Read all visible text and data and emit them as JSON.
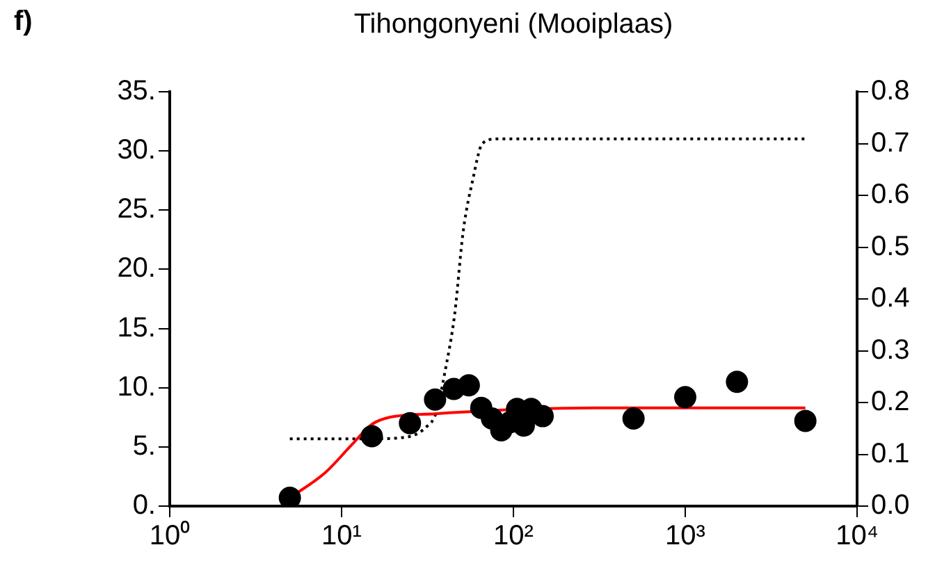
{
  "chart_data": {
    "type": "scatter",
    "title": "Tihongonyeni (Mooiplaas)",
    "annotations": [
      "f)"
    ],
    "log": "x",
    "grid": false,
    "legend": false,
    "marker": "circle",
    "xlim": [
      1,
      10000
    ],
    "xticks": [
      {
        "value": 1,
        "label": "10⁰"
      },
      {
        "value": 10,
        "label": "10¹"
      },
      {
        "value": 100,
        "label": "10²"
      },
      {
        "value": 1000,
        "label": "10³"
      },
      {
        "value": 10000,
        "label": "10⁴"
      }
    ],
    "ylim": [
      0,
      35
    ],
    "yticks": [
      {
        "value": 0,
        "label": "0."
      },
      {
        "value": 5,
        "label": "5."
      },
      {
        "value": 10,
        "label": "10."
      },
      {
        "value": 15,
        "label": "15."
      },
      {
        "value": 20,
        "label": "20."
      },
      {
        "value": 25,
        "label": "25."
      },
      {
        "value": 30,
        "label": "30."
      },
      {
        "value": 35,
        "label": "35."
      }
    ],
    "y2lim": [
      0,
      0.8
    ],
    "y2ticks": [
      {
        "value": 0,
        "label": "0.0"
      },
      {
        "value": 0.1,
        "label": "0.1"
      },
      {
        "value": 0.2,
        "label": "0.2"
      },
      {
        "value": 0.3,
        "label": "0.3"
      },
      {
        "value": 0.4,
        "label": "0.4"
      },
      {
        "value": 0.5,
        "label": "0.5"
      },
      {
        "value": 0.6,
        "label": "0.6"
      },
      {
        "value": 0.7,
        "label": "0.7"
      },
      {
        "value": 0.8,
        "label": "0.8"
      }
    ],
    "series": [
      {
        "color": "#000000",
        "x": [
          5,
          15,
          25,
          35,
          45,
          55,
          65,
          75,
          85,
          96,
          105,
          115,
          127,
          148,
          500,
          1000,
          2000,
          5000
        ],
        "values": [
          0.7,
          5.9,
          7.0,
          9.0,
          9.9,
          10.2,
          8.3,
          7.4,
          6.4,
          7.1,
          8.2,
          6.8,
          8.2,
          7.6,
          7.4,
          9.2,
          10.5,
          7.2
        ]
      },
      {
        "type": "line",
        "color": "#ff0000",
        "line_style": "solid",
        "marker": "none",
        "x": [
          5,
          8,
          11.5,
          15,
          19,
          35,
          123,
          294,
          5000
        ],
        "values": [
          0.7,
          2.8,
          5.2,
          6.9,
          7.5,
          7.8,
          8.2,
          8.3,
          8.3
        ]
      },
      {
        "type": "line",
        "axis": "y2",
        "color": "#000000",
        "line_style": "dotted",
        "marker": "none",
        "x": [
          5,
          15,
          24.5,
          31.4,
          35.5,
          40,
          45.5,
          51,
          58,
          66,
          80,
          5000
        ],
        "values": [
          0.13,
          0.13,
          0.134,
          0.154,
          0.18,
          0.26,
          0.37,
          0.53,
          0.63,
          0.7,
          0.709,
          0.709
        ]
      }
    ]
  }
}
